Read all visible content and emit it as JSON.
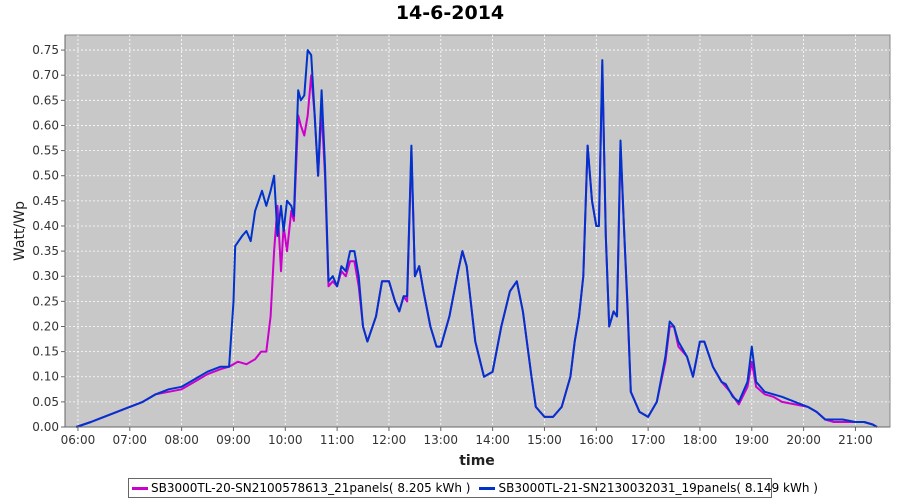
{
  "chart_data": {
    "type": "line",
    "title": "14-6-2014",
    "xlabel": "time",
    "ylabel": "Watt/Wp",
    "xlim": [
      "05:45",
      "21:40"
    ],
    "ylim": [
      0,
      0.78
    ],
    "x_ticks": [
      "06:00",
      "07:00",
      "08:00",
      "09:00",
      "10:00",
      "11:00",
      "12:00",
      "13:00",
      "14:00",
      "15:00",
      "16:00",
      "17:00",
      "18:00",
      "19:00",
      "20:00",
      "21:00"
    ],
    "y_ticks": [
      0.0,
      0.05,
      0.1,
      0.15,
      0.2,
      0.25,
      0.3,
      0.35,
      0.4,
      0.45,
      0.5,
      0.55,
      0.6,
      0.65,
      0.7,
      0.75
    ],
    "grid": true,
    "legend_position": "bottom",
    "background_color": "#c8c8c8",
    "series": [
      {
        "name": "SB3000TL-20-SN2100578613_21panels( 8.205 kWh )",
        "color": "#cc00cc",
        "points": [
          [
            "05:58",
            0.0
          ],
          [
            "06:15",
            0.01
          ],
          [
            "06:30",
            0.02
          ],
          [
            "06:45",
            0.03
          ],
          [
            "07:00",
            0.04
          ],
          [
            "07:15",
            0.05
          ],
          [
            "07:30",
            0.065
          ],
          [
            "07:45",
            0.07
          ],
          [
            "08:00",
            0.075
          ],
          [
            "08:15",
            0.09
          ],
          [
            "08:30",
            0.105
          ],
          [
            "08:45",
            0.115
          ],
          [
            "08:55",
            0.12
          ],
          [
            "09:05",
            0.13
          ],
          [
            "09:15",
            0.125
          ],
          [
            "09:25",
            0.135
          ],
          [
            "09:32",
            0.15
          ],
          [
            "09:38",
            0.15
          ],
          [
            "09:43",
            0.22
          ],
          [
            "09:47",
            0.35
          ],
          [
            "09:51",
            0.44
          ],
          [
            "09:55",
            0.31
          ],
          [
            "09:58",
            0.4
          ],
          [
            "10:02",
            0.35
          ],
          [
            "10:07",
            0.43
          ],
          [
            "10:10",
            0.41
          ],
          [
            "10:15",
            0.62
          ],
          [
            "10:18",
            0.6
          ],
          [
            "10:22",
            0.58
          ],
          [
            "10:26",
            0.62
          ],
          [
            "10:30",
            0.7
          ],
          [
            "10:34",
            0.62
          ],
          [
            "10:38",
            0.5
          ],
          [
            "10:42",
            0.63
          ],
          [
            "10:46",
            0.5
          ],
          [
            "10:50",
            0.28
          ],
          [
            "10:55",
            0.29
          ],
          [
            "11:00",
            0.28
          ],
          [
            "11:05",
            0.31
          ],
          [
            "11:10",
            0.3
          ],
          [
            "11:15",
            0.33
          ],
          [
            "11:20",
            0.33
          ],
          [
            "11:25",
            0.28
          ],
          [
            "11:30",
            0.2
          ],
          [
            "11:35",
            0.17
          ],
          [
            "11:45",
            0.22
          ],
          [
            "11:52",
            0.29
          ],
          [
            "12:00",
            0.29
          ],
          [
            "12:07",
            0.25
          ],
          [
            "12:12",
            0.23
          ],
          [
            "12:17",
            0.26
          ],
          [
            "12:21",
            0.25
          ],
          [
            "12:26",
            0.55
          ],
          [
            "12:30",
            0.3
          ],
          [
            "12:35",
            0.32
          ],
          [
            "12:40",
            0.27
          ],
          [
            "12:48",
            0.2
          ],
          [
            "12:55",
            0.16
          ],
          [
            "13:00",
            0.16
          ],
          [
            "13:10",
            0.22
          ],
          [
            "13:20",
            0.31
          ],
          [
            "13:25",
            0.35
          ],
          [
            "13:30",
            0.32
          ],
          [
            "13:40",
            0.17
          ],
          [
            "13:50",
            0.1
          ],
          [
            "14:00",
            0.11
          ],
          [
            "14:10",
            0.2
          ],
          [
            "14:20",
            0.27
          ],
          [
            "14:28",
            0.29
          ],
          [
            "14:35",
            0.23
          ],
          [
            "14:45",
            0.1
          ],
          [
            "14:50",
            0.04
          ],
          [
            "15:00",
            0.02
          ],
          [
            "15:10",
            0.02
          ],
          [
            "15:20",
            0.04
          ],
          [
            "15:30",
            0.1
          ],
          [
            "15:35",
            0.17
          ],
          [
            "15:40",
            0.22
          ],
          [
            "15:45",
            0.3
          ],
          [
            "15:50",
            0.56
          ],
          [
            "15:55",
            0.45
          ],
          [
            "16:00",
            0.4
          ],
          [
            "16:03",
            0.4
          ],
          [
            "16:07",
            0.72
          ],
          [
            "16:11",
            0.38
          ],
          [
            "16:15",
            0.2
          ],
          [
            "16:20",
            0.23
          ],
          [
            "16:24",
            0.22
          ],
          [
            "16:28",
            0.56
          ],
          [
            "16:32",
            0.4
          ],
          [
            "16:36",
            0.24
          ],
          [
            "16:40",
            0.07
          ],
          [
            "16:50",
            0.03
          ],
          [
            "17:00",
            0.02
          ],
          [
            "17:10",
            0.05
          ],
          [
            "17:20",
            0.13
          ],
          [
            "17:25",
            0.2
          ],
          [
            "17:30",
            0.2
          ],
          [
            "17:35",
            0.16
          ],
          [
            "17:45",
            0.14
          ],
          [
            "17:52",
            0.1
          ],
          [
            "18:00",
            0.17
          ],
          [
            "18:05",
            0.17
          ],
          [
            "18:15",
            0.12
          ],
          [
            "18:25",
            0.09
          ],
          [
            "18:35",
            0.07
          ],
          [
            "18:45",
            0.045
          ],
          [
            "18:55",
            0.08
          ],
          [
            "19:00",
            0.13
          ],
          [
            "19:05",
            0.08
          ],
          [
            "19:15",
            0.065
          ],
          [
            "19:25",
            0.06
          ],
          [
            "19:35",
            0.05
          ],
          [
            "19:50",
            0.045
          ],
          [
            "20:05",
            0.04
          ],
          [
            "20:15",
            0.03
          ],
          [
            "20:25",
            0.015
          ],
          [
            "20:35",
            0.01
          ],
          [
            "20:45",
            0.01
          ],
          [
            "21:00",
            0.01
          ],
          [
            "21:10",
            0.01
          ],
          [
            "21:20",
            0.005
          ],
          [
            "21:25",
            0.0
          ]
        ]
      },
      {
        "name": "SB3000TL-21-SN2130032031_19panels( 8.149 kWh )",
        "color": "#0033cc",
        "points": [
          [
            "05:58",
            0.0
          ],
          [
            "06:15",
            0.01
          ],
          [
            "06:30",
            0.02
          ],
          [
            "06:45",
            0.03
          ],
          [
            "07:00",
            0.04
          ],
          [
            "07:15",
            0.05
          ],
          [
            "07:30",
            0.065
          ],
          [
            "07:45",
            0.075
          ],
          [
            "08:00",
            0.08
          ],
          [
            "08:15",
            0.095
          ],
          [
            "08:30",
            0.11
          ],
          [
            "08:45",
            0.12
          ],
          [
            "08:55",
            0.12
          ],
          [
            "09:00",
            0.25
          ],
          [
            "09:02",
            0.36
          ],
          [
            "09:10",
            0.38
          ],
          [
            "09:15",
            0.39
          ],
          [
            "09:20",
            0.37
          ],
          [
            "09:25",
            0.43
          ],
          [
            "09:33",
            0.47
          ],
          [
            "09:38",
            0.44
          ],
          [
            "09:43",
            0.47
          ],
          [
            "09:47",
            0.5
          ],
          [
            "09:51",
            0.38
          ],
          [
            "09:55",
            0.44
          ],
          [
            "09:58",
            0.39
          ],
          [
            "10:02",
            0.45
          ],
          [
            "10:07",
            0.44
          ],
          [
            "10:10",
            0.42
          ],
          [
            "10:15",
            0.67
          ],
          [
            "10:18",
            0.65
          ],
          [
            "10:22",
            0.66
          ],
          [
            "10:26",
            0.75
          ],
          [
            "10:30",
            0.74
          ],
          [
            "10:34",
            0.62
          ],
          [
            "10:38",
            0.5
          ],
          [
            "10:42",
            0.67
          ],
          [
            "10:46",
            0.52
          ],
          [
            "10:50",
            0.29
          ],
          [
            "10:55",
            0.3
          ],
          [
            "11:00",
            0.28
          ],
          [
            "11:05",
            0.32
          ],
          [
            "11:10",
            0.31
          ],
          [
            "11:15",
            0.35
          ],
          [
            "11:20",
            0.35
          ],
          [
            "11:25",
            0.3
          ],
          [
            "11:30",
            0.2
          ],
          [
            "11:35",
            0.17
          ],
          [
            "11:45",
            0.22
          ],
          [
            "11:52",
            0.29
          ],
          [
            "12:00",
            0.29
          ],
          [
            "12:07",
            0.25
          ],
          [
            "12:12",
            0.23
          ],
          [
            "12:17",
            0.26
          ],
          [
            "12:21",
            0.26
          ],
          [
            "12:26",
            0.56
          ],
          [
            "12:30",
            0.3
          ],
          [
            "12:35",
            0.32
          ],
          [
            "12:40",
            0.27
          ],
          [
            "12:48",
            0.2
          ],
          [
            "12:55",
            0.16
          ],
          [
            "13:00",
            0.16
          ],
          [
            "13:10",
            0.22
          ],
          [
            "13:20",
            0.31
          ],
          [
            "13:25",
            0.35
          ],
          [
            "13:30",
            0.32
          ],
          [
            "13:40",
            0.17
          ],
          [
            "13:50",
            0.1
          ],
          [
            "14:00",
            0.11
          ],
          [
            "14:10",
            0.2
          ],
          [
            "14:20",
            0.27
          ],
          [
            "14:28",
            0.29
          ],
          [
            "14:35",
            0.23
          ],
          [
            "14:45",
            0.1
          ],
          [
            "14:50",
            0.04
          ],
          [
            "15:00",
            0.02
          ],
          [
            "15:10",
            0.02
          ],
          [
            "15:20",
            0.04
          ],
          [
            "15:30",
            0.1
          ],
          [
            "15:35",
            0.17
          ],
          [
            "15:40",
            0.22
          ],
          [
            "15:45",
            0.3
          ],
          [
            "15:50",
            0.56
          ],
          [
            "15:55",
            0.45
          ],
          [
            "16:00",
            0.4
          ],
          [
            "16:03",
            0.4
          ],
          [
            "16:07",
            0.73
          ],
          [
            "16:11",
            0.38
          ],
          [
            "16:15",
            0.2
          ],
          [
            "16:20",
            0.23
          ],
          [
            "16:24",
            0.22
          ],
          [
            "16:28",
            0.57
          ],
          [
            "16:32",
            0.4
          ],
          [
            "16:36",
            0.25
          ],
          [
            "16:40",
            0.07
          ],
          [
            "16:50",
            0.03
          ],
          [
            "17:00",
            0.02
          ],
          [
            "17:10",
            0.05
          ],
          [
            "17:20",
            0.14
          ],
          [
            "17:25",
            0.21
          ],
          [
            "17:30",
            0.2
          ],
          [
            "17:35",
            0.17
          ],
          [
            "17:45",
            0.14
          ],
          [
            "17:52",
            0.1
          ],
          [
            "18:00",
            0.17
          ],
          [
            "18:05",
            0.17
          ],
          [
            "18:15",
            0.12
          ],
          [
            "18:25",
            0.09
          ],
          [
            "18:30",
            0.085
          ],
          [
            "18:38",
            0.06
          ],
          [
            "18:45",
            0.05
          ],
          [
            "18:55",
            0.09
          ],
          [
            "19:00",
            0.16
          ],
          [
            "19:05",
            0.09
          ],
          [
            "19:15",
            0.07
          ],
          [
            "19:25",
            0.065
          ],
          [
            "19:35",
            0.06
          ],
          [
            "19:50",
            0.05
          ],
          [
            "20:05",
            0.04
          ],
          [
            "20:15",
            0.03
          ],
          [
            "20:25",
            0.015
          ],
          [
            "20:35",
            0.015
          ],
          [
            "20:45",
            0.015
          ],
          [
            "21:00",
            0.01
          ],
          [
            "21:10",
            0.01
          ],
          [
            "21:20",
            0.005
          ],
          [
            "21:25",
            0.0
          ]
        ]
      }
    ]
  }
}
